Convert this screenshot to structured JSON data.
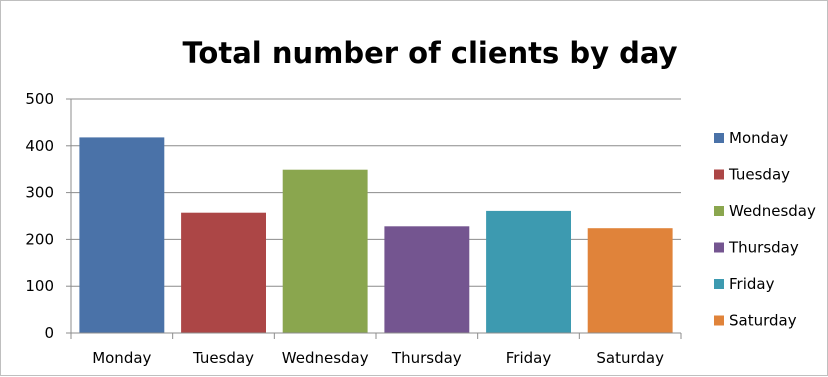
{
  "chart_data": {
    "type": "bar",
    "title": "Total number of clients by day",
    "xlabel": "",
    "ylabel": "",
    "categories": [
      "Monday",
      "Tuesday",
      "Wednesday",
      "Thursday",
      "Friday",
      "Saturday"
    ],
    "values": [
      418,
      257,
      349,
      228,
      261,
      224
    ],
    "colors": [
      "#4a72a8",
      "#ac4646",
      "#8aa64e",
      "#745590",
      "#3d9ab0",
      "#e0833a"
    ],
    "ylim": [
      0,
      500
    ],
    "yticks": [
      0,
      100,
      200,
      300,
      400,
      500
    ],
    "grid": true,
    "legend": {
      "position": "right",
      "entries": [
        "Monday",
        "Tuesday",
        "Wednesday",
        "Thursday",
        "Friday",
        "Saturday"
      ]
    }
  }
}
